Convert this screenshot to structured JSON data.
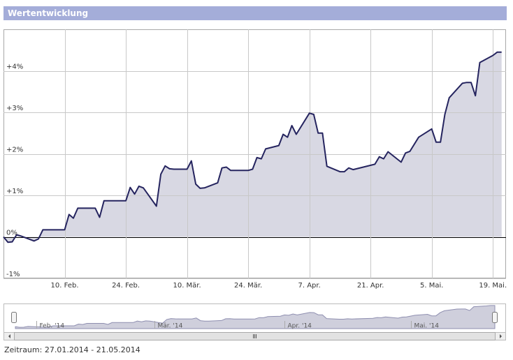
{
  "header": {
    "title": "Wertentwicklung"
  },
  "chart_data": {
    "type": "line",
    "x": [
      "2014-01-27",
      "2014-01-28",
      "2014-01-29",
      "2014-01-30",
      "2014-01-31",
      "2014-02-03",
      "2014-02-04",
      "2014-02-05",
      "2014-02-06",
      "2014-02-07",
      "2014-02-10",
      "2014-02-11",
      "2014-02-12",
      "2014-02-13",
      "2014-02-14",
      "2014-02-17",
      "2014-02-18",
      "2014-02-19",
      "2014-02-20",
      "2014-02-21",
      "2014-02-24",
      "2014-02-25",
      "2014-02-26",
      "2014-02-27",
      "2014-02-28",
      "2014-03-03",
      "2014-03-04",
      "2014-03-05",
      "2014-03-06",
      "2014-03-07",
      "2014-03-10",
      "2014-03-11",
      "2014-03-12",
      "2014-03-13",
      "2014-03-14",
      "2014-03-17",
      "2014-03-18",
      "2014-03-19",
      "2014-03-20",
      "2014-03-21",
      "2014-03-24",
      "2014-03-25",
      "2014-03-26",
      "2014-03-27",
      "2014-03-28",
      "2014-03-31",
      "2014-04-01",
      "2014-04-02",
      "2014-04-03",
      "2014-04-04",
      "2014-04-07",
      "2014-04-08",
      "2014-04-09",
      "2014-04-10",
      "2014-04-11",
      "2014-04-14",
      "2014-04-15",
      "2014-04-16",
      "2014-04-17",
      "2014-04-22",
      "2014-04-23",
      "2014-04-24",
      "2014-04-25",
      "2014-04-28",
      "2014-04-29",
      "2014-04-30",
      "2014-05-02",
      "2014-05-05",
      "2014-05-06",
      "2014-05-07",
      "2014-05-08",
      "2014-05-09",
      "2014-05-12",
      "2014-05-13",
      "2014-05-14",
      "2014-05-15",
      "2014-05-16",
      "2014-05-19",
      "2014-05-20",
      "2014-05-21"
    ],
    "values": [
      0.0,
      -0.13,
      -0.12,
      0.05,
      0.02,
      -0.1,
      -0.05,
      0.17,
      0.17,
      0.17,
      0.17,
      0.54,
      0.45,
      0.69,
      0.69,
      0.69,
      0.47,
      0.87,
      0.87,
      0.87,
      0.87,
      1.19,
      1.03,
      1.22,
      1.18,
      0.74,
      1.51,
      1.71,
      1.64,
      1.63,
      1.63,
      1.83,
      1.27,
      1.17,
      1.18,
      1.3,
      1.66,
      1.68,
      1.6,
      1.6,
      1.6,
      1.63,
      1.91,
      1.88,
      2.12,
      2.2,
      2.47,
      2.4,
      2.68,
      2.47,
      2.98,
      2.95,
      2.5,
      2.5,
      1.7,
      1.57,
      1.57,
      1.66,
      1.62,
      1.75,
      1.93,
      1.88,
      2.05,
      1.8,
      2.02,
      2.06,
      2.4,
      2.6,
      2.28,
      2.28,
      2.95,
      3.35,
      3.7,
      3.72,
      3.72,
      3.4,
      4.2,
      4.37,
      4.45,
      4.45
    ],
    "color": "#25245f",
    "fill_color": "#d8d8e3",
    "xlim": [
      "2014-01-27",
      "2014-05-22"
    ],
    "xticks": [
      {
        "value": "2014-02-10",
        "label": "10. Feb."
      },
      {
        "value": "2014-02-24",
        "label": "24. Feb."
      },
      {
        "value": "2014-03-10",
        "label": "10. Mär."
      },
      {
        "value": "2014-03-24",
        "label": "24. Mär."
      },
      {
        "value": "2014-04-07",
        "label": "7. Apr."
      },
      {
        "value": "2014-04-21",
        "label": "21. Apr."
      },
      {
        "value": "2014-05-05",
        "label": "5. Mai."
      },
      {
        "value": "2014-05-19",
        "label": "19. Mai."
      }
    ],
    "ylim": [
      -1,
      5
    ],
    "yticks": [
      {
        "value": -1,
        "label": "-1%"
      },
      {
        "value": 0,
        "label": "0%"
      },
      {
        "value": 1,
        "label": "+1%"
      },
      {
        "value": 2,
        "label": "+2%"
      },
      {
        "value": 3,
        "label": "+3%"
      },
      {
        "value": 4,
        "label": "+4%"
      }
    ],
    "grid": true
  },
  "navigator": {
    "xticks": [
      {
        "value": "2014-02-01",
        "label": "Feb. '14"
      },
      {
        "value": "2014-03-01",
        "label": "Mär. '14"
      },
      {
        "value": "2014-04-01",
        "label": "Apr. '14"
      },
      {
        "value": "2014-05-01",
        "label": "Mai. '14"
      }
    ]
  },
  "footer": {
    "period": "Zeitraum: 27.01.2014 - 21.05.2014"
  }
}
